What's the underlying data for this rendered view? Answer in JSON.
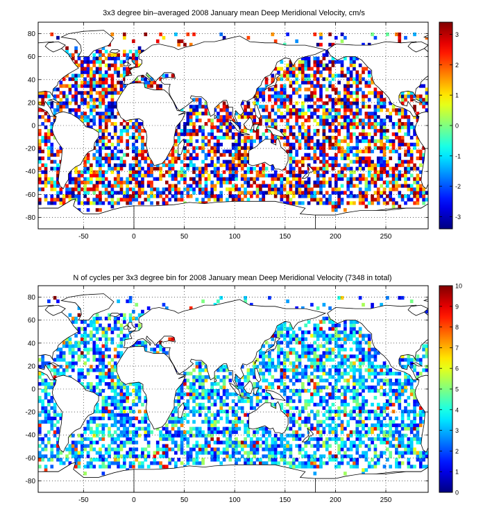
{
  "chart_data": [
    {
      "type": "heatmap",
      "title": "3x3 degree bin–averaged 2008 January mean Deep Meridional Velocity, cm/s",
      "xlabel": "",
      "ylabel": "",
      "xlim": [
        -95,
        292
      ],
      "ylim": [
        -90,
        90
      ],
      "x_ticks": [
        -50,
        0,
        50,
        100,
        150,
        200,
        250
      ],
      "y_ticks": [
        80,
        60,
        40,
        20,
        0,
        -20,
        -40,
        -60,
        -80
      ],
      "colorbar": {
        "min": -3.4,
        "max": 3.4,
        "ticks": [
          3,
          2,
          1,
          0,
          -1,
          -2,
          -3
        ],
        "colormap": "jet"
      },
      "bin_size_deg": 3,
      "grid": true,
      "seed": 12345,
      "base": "signed"
    },
    {
      "type": "heatmap",
      "title": "N of cycles per 3x3 degree bin for 2008 January mean Deep Meridional Velocity (7348 in total)",
      "xlabel": "",
      "ylabel": "",
      "xlim": [
        -95,
        292
      ],
      "ylim": [
        -90,
        90
      ],
      "x_ticks": [
        -50,
        0,
        50,
        100,
        150,
        200,
        250
      ],
      "y_ticks": [
        80,
        60,
        40,
        20,
        0,
        -20,
        -40,
        -60,
        -80
      ],
      "colorbar": {
        "min": 0,
        "max": 10,
        "ticks": [
          10,
          9,
          8,
          7,
          6,
          5,
          4,
          3,
          2,
          1,
          0
        ],
        "colormap": "jet"
      },
      "bin_size_deg": 3,
      "grid": true,
      "seed": 98765,
      "base": "count"
    }
  ],
  "colors": {
    "axis": "#000000",
    "grid": "#000000",
    "land": "#ffffff"
  }
}
